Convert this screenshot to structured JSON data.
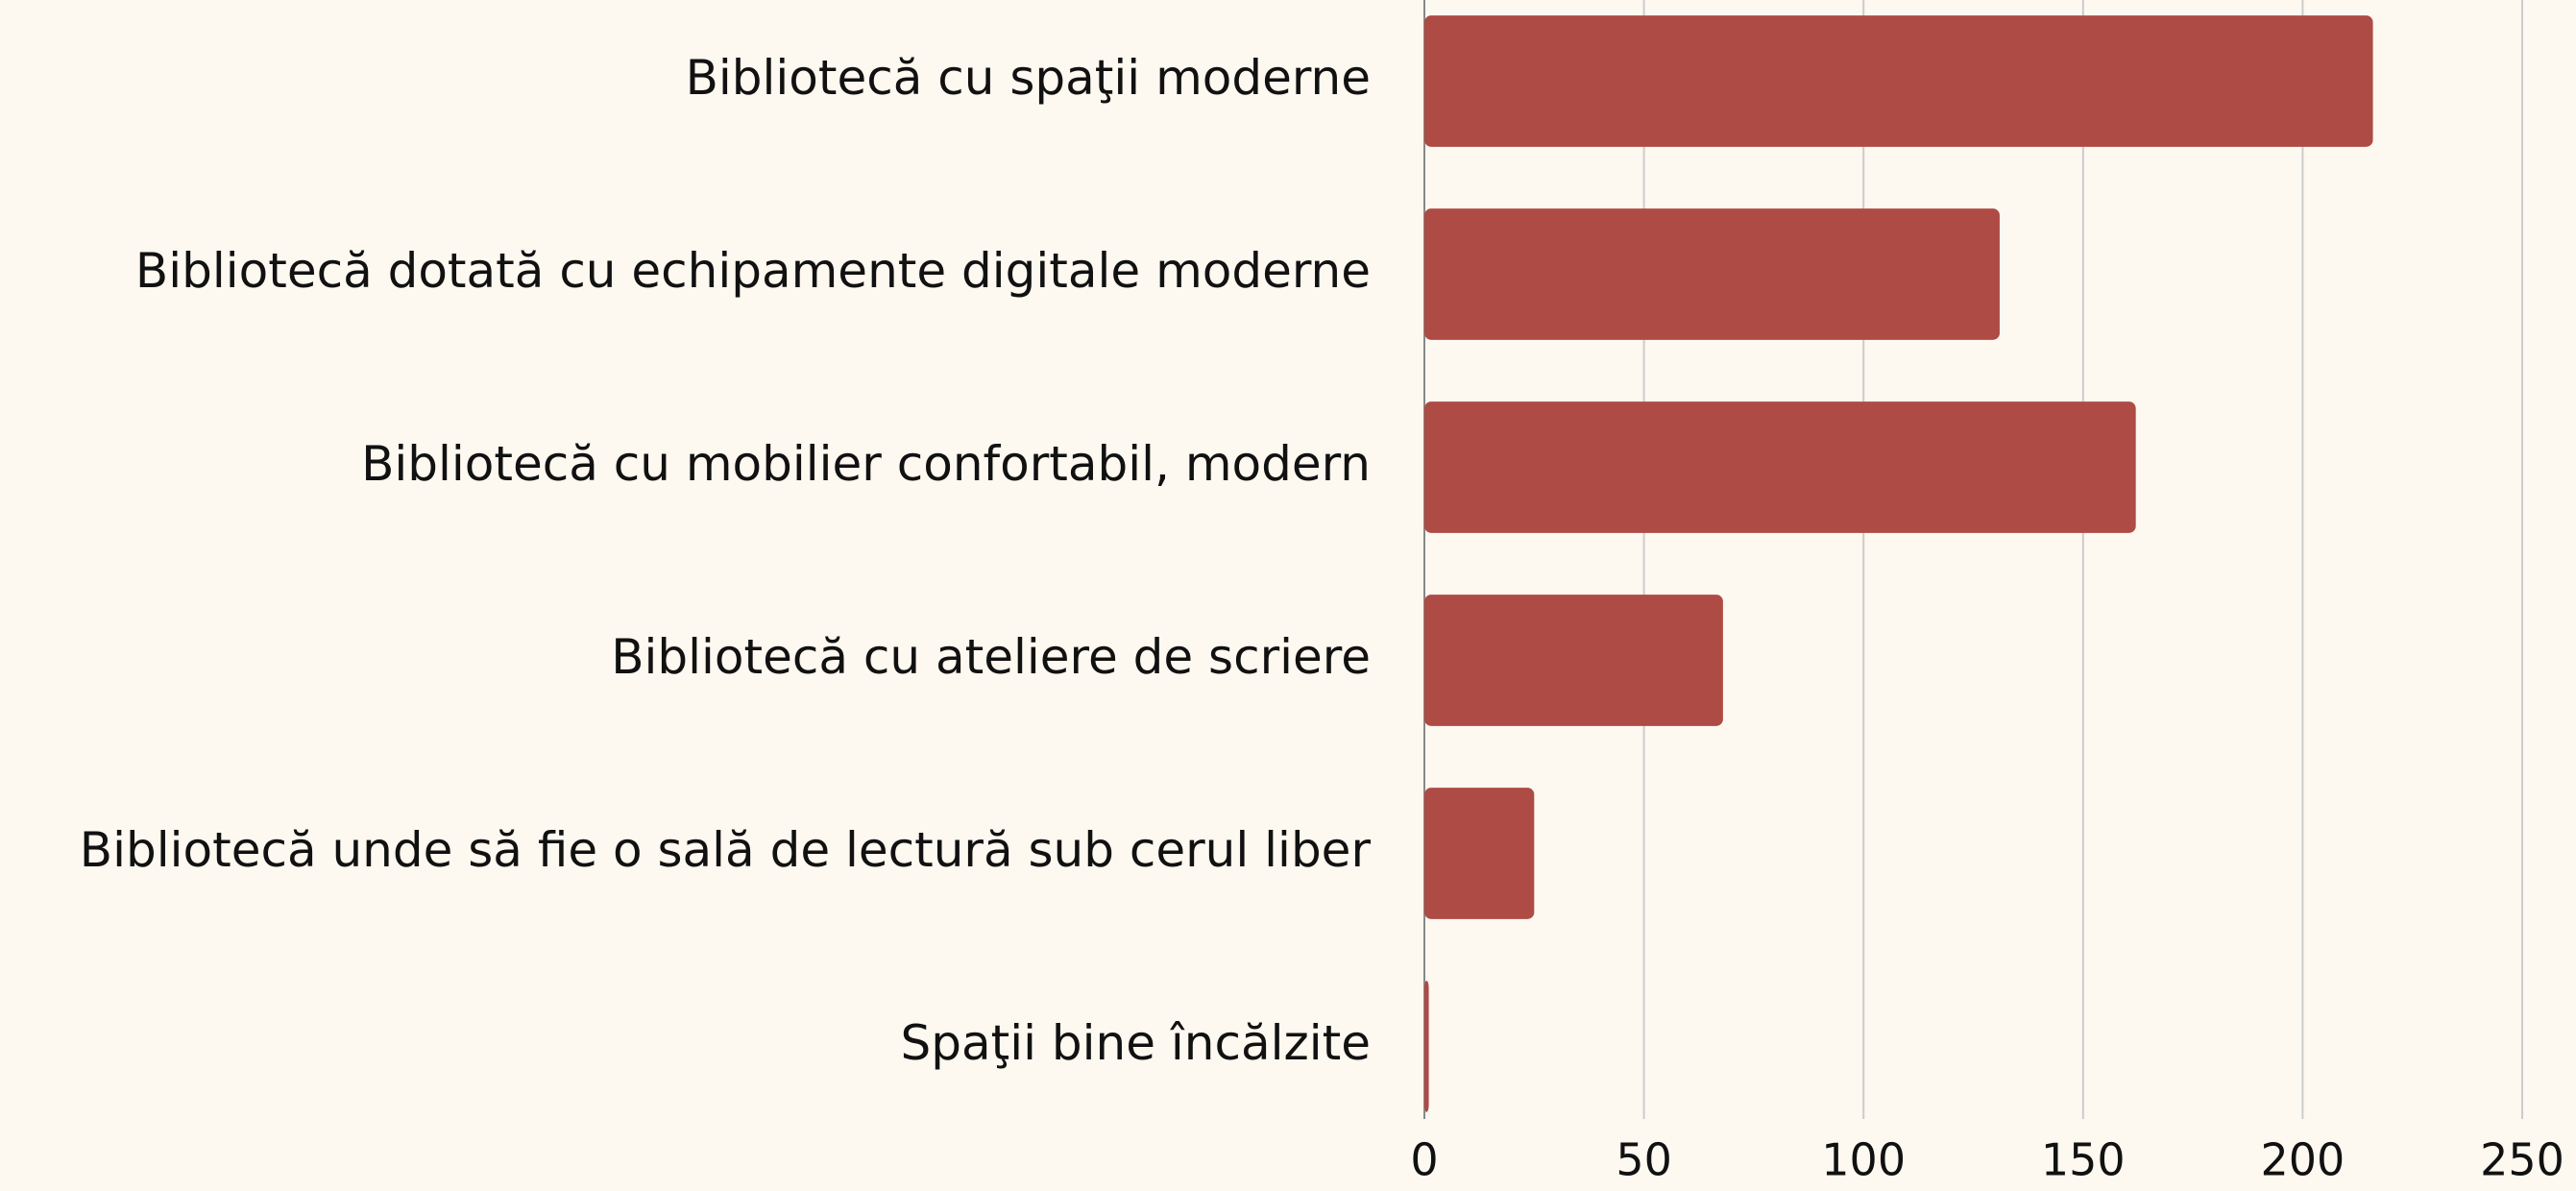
{
  "chart_data": {
    "type": "bar",
    "orientation": "horizontal",
    "categories": [
      "Bibliotecă cu spaţii moderne",
      "Bibliotecă dotată cu echipamente digitale moderne",
      "Bibliotecă cu mobilier confortabil, modern",
      "Bibliotecă cu ateliere de scriere",
      "Bibliotecă unde să fie o sală de lectură sub cerul liber",
      "Spaţii bine încălzite"
    ],
    "values": [
      216,
      131,
      162,
      68,
      25,
      1
    ],
    "color": "#ad4b44",
    "xlim": [
      0,
      250
    ],
    "xticks": [
      0,
      50,
      100,
      150,
      200,
      250
    ],
    "grid": true
  }
}
